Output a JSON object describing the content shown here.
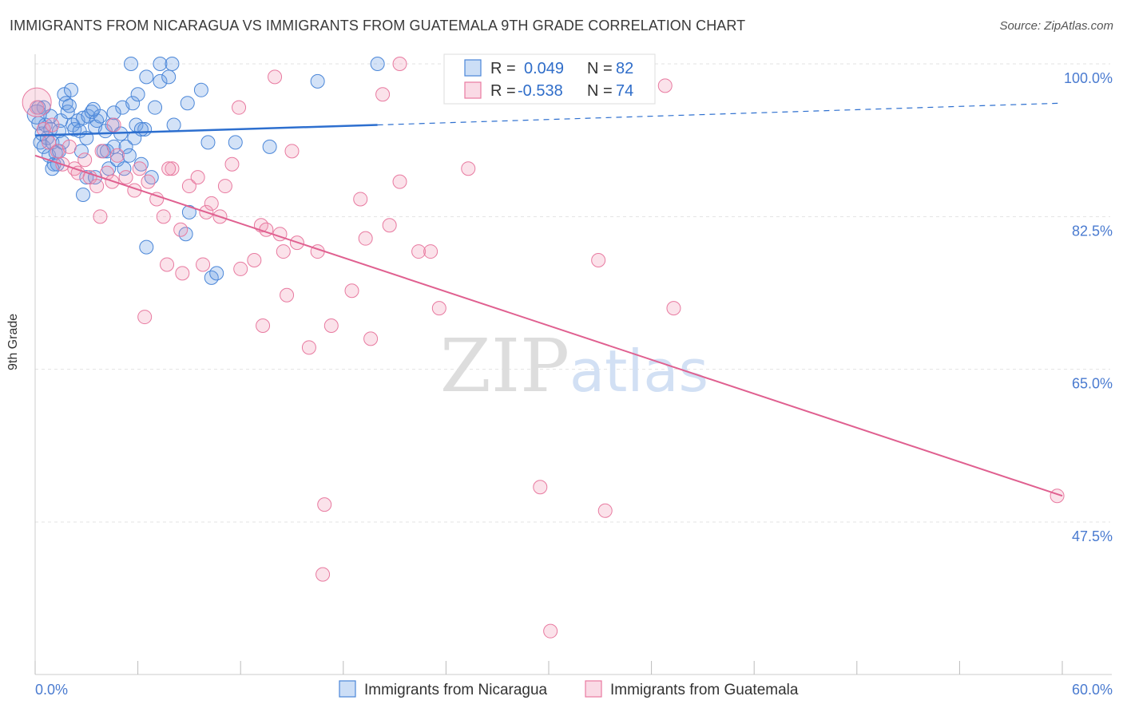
{
  "header": {
    "title": "IMMIGRANTS FROM NICARAGUA VS IMMIGRANTS FROM GUATEMALA 9TH GRADE CORRELATION CHART",
    "source": "Source: ZipAtlas.com"
  },
  "colors": {
    "blue": "#4a86d8",
    "blue_fill": "rgba(110,160,230,0.30)",
    "blue_line": "#2d6fcf",
    "pink": "#e87aa0",
    "pink_fill": "rgba(240,150,180,0.28)",
    "pink_line": "#e06090",
    "grid": "#e3e3e3",
    "axis_text": "#4a7bd0"
  },
  "stats": {
    "blue": {
      "r_label": "R =",
      "r_value": "0.049",
      "n_label": "N =",
      "n_value": "82"
    },
    "pink": {
      "r_label": "R =",
      "r_value": "-0.538",
      "n_label": "N =",
      "n_value": "74"
    }
  },
  "watermark": {
    "zip": "ZIP",
    "atlas": "atlas"
  },
  "chart_data": {
    "type": "scatter",
    "title": "IMMIGRANTS FROM NICARAGUA VS IMMIGRANTS FROM GUATEMALA 9TH GRADE CORRELATION CHART",
    "xlabel": "",
    "ylabel": "9th Grade",
    "xlim": [
      0,
      60
    ],
    "ylim": [
      31,
      102
    ],
    "x_tick_labels": [
      "0.0%",
      "60.0%"
    ],
    "y_ticks": [
      47.5,
      65.0,
      82.5,
      100.0
    ],
    "y_tick_labels": [
      "47.5%",
      "65.0%",
      "82.5%",
      "100.0%"
    ],
    "legend": [
      "Immigrants from Nicaragua",
      "Immigrants from Guatemala"
    ],
    "series": [
      {
        "name": "Immigrants from Nicaragua",
        "color": "blue",
        "points": [
          [
            0.2,
            93.2
          ],
          [
            0.3,
            91.0
          ],
          [
            0.4,
            92.0
          ],
          [
            0.5,
            90.5
          ],
          [
            0.6,
            93.0
          ],
          [
            0.7,
            91.5
          ],
          [
            0.8,
            89.5
          ],
          [
            0.9,
            92.5
          ],
          [
            1.0,
            91.0
          ],
          [
            1.1,
            88.5
          ],
          [
            1.2,
            89.8
          ],
          [
            1.3,
            88.5
          ],
          [
            1.4,
            90.0
          ],
          [
            1.5,
            93.5
          ],
          [
            1.6,
            91.0
          ],
          [
            1.7,
            96.5
          ],
          [
            1.8,
            95.5
          ],
          [
            1.9,
            94.5
          ],
          [
            2.0,
            95.2
          ],
          [
            2.2,
            93.0
          ],
          [
            2.3,
            92.5
          ],
          [
            2.5,
            93.5
          ],
          [
            2.7,
            90.0
          ],
          [
            2.8,
            93.8
          ],
          [
            3.0,
            87.0
          ],
          [
            3.1,
            94.0
          ],
          [
            3.3,
            94.5
          ],
          [
            3.5,
            92.8
          ],
          [
            3.6,
            93.5
          ],
          [
            3.8,
            94.0
          ],
          [
            4.0,
            90.0
          ],
          [
            4.1,
            92.3
          ],
          [
            4.3,
            88.0
          ],
          [
            4.5,
            93.0
          ],
          [
            4.6,
            90.5
          ],
          [
            4.8,
            89.0
          ],
          [
            5.0,
            92.0
          ],
          [
            5.1,
            95.0
          ],
          [
            5.3,
            90.5
          ],
          [
            5.5,
            89.5
          ],
          [
            5.7,
            95.5
          ],
          [
            5.9,
            93.0
          ],
          [
            6.0,
            96.5
          ],
          [
            6.2,
            88.5
          ],
          [
            6.4,
            92.5
          ],
          [
            7.0,
            95.0
          ],
          [
            7.3,
            98.0
          ],
          [
            8.1,
            93.0
          ],
          [
            8.9,
            95.5
          ],
          [
            9.7,
            97.0
          ],
          [
            10.1,
            91.0
          ],
          [
            11.7,
            91.0
          ],
          [
            13.7,
            90.5
          ],
          [
            16.5,
            98.0
          ],
          [
            20.0,
            100.0
          ],
          [
            5.6,
            100.0
          ],
          [
            7.3,
            100.0
          ],
          [
            8.0,
            100.0
          ],
          [
            6.5,
            98.5
          ],
          [
            7.8,
            98.5
          ],
          [
            5.2,
            88.0
          ],
          [
            6.8,
            87.0
          ],
          [
            3.5,
            87.0
          ],
          [
            2.8,
            85.0
          ],
          [
            9.0,
            83.0
          ],
          [
            8.8,
            80.5
          ],
          [
            6.5,
            79.0
          ],
          [
            10.3,
            75.5
          ],
          [
            10.6,
            76.0
          ],
          [
            0.5,
            95.0
          ],
          [
            0.9,
            94.0
          ],
          [
            1.4,
            92.3
          ],
          [
            2.1,
            97.0
          ],
          [
            3.4,
            94.8
          ],
          [
            4.6,
            94.4
          ],
          [
            2.6,
            92.3
          ],
          [
            0.2,
            95.0
          ],
          [
            1.0,
            88.0
          ],
          [
            3.0,
            91.5
          ],
          [
            4.2,
            90.0
          ],
          [
            5.8,
            91.5
          ],
          [
            6.2,
            92.5
          ]
        ]
      },
      {
        "name": "Immigrants from Guatemala",
        "color": "pink",
        "points": [
          [
            0.1,
            95.0
          ],
          [
            0.5,
            92.5
          ],
          [
            0.8,
            91.0
          ],
          [
            1.0,
            93.0
          ],
          [
            1.3,
            90.0
          ],
          [
            1.6,
            88.5
          ],
          [
            2.0,
            90.5
          ],
          [
            2.3,
            88.0
          ],
          [
            2.5,
            87.5
          ],
          [
            2.9,
            89.0
          ],
          [
            3.2,
            87.0
          ],
          [
            3.6,
            86.0
          ],
          [
            3.9,
            90.0
          ],
          [
            4.2,
            87.5
          ],
          [
            4.5,
            86.5
          ],
          [
            4.8,
            89.5
          ],
          [
            5.3,
            87.0
          ],
          [
            5.8,
            85.5
          ],
          [
            6.1,
            88.0
          ],
          [
            6.6,
            86.5
          ],
          [
            7.1,
            84.5
          ],
          [
            7.5,
            82.5
          ],
          [
            8.0,
            88.0
          ],
          [
            8.5,
            81.0
          ],
          [
            9.0,
            86.0
          ],
          [
            9.5,
            87.0
          ],
          [
            10.0,
            83.0
          ],
          [
            10.3,
            84.0
          ],
          [
            10.8,
            82.5
          ],
          [
            11.1,
            86.0
          ],
          [
            11.5,
            88.5
          ],
          [
            11.9,
            95.0
          ],
          [
            13.2,
            81.5
          ],
          [
            13.5,
            81.0
          ],
          [
            14.3,
            80.5
          ],
          [
            14.5,
            78.5
          ],
          [
            14.7,
            73.5
          ],
          [
            15.3,
            79.5
          ],
          [
            16.5,
            78.5
          ],
          [
            12.8,
            77.5
          ],
          [
            13.3,
            70.0
          ],
          [
            17.3,
            70.0
          ],
          [
            18.5,
            74.0
          ],
          [
            19.3,
            80.0
          ],
          [
            19.6,
            68.5
          ],
          [
            20.3,
            96.5
          ],
          [
            20.7,
            81.5
          ],
          [
            21.3,
            86.5
          ],
          [
            21.3,
            100.0
          ],
          [
            22.4,
            78.5
          ],
          [
            23.1,
            78.5
          ],
          [
            23.6,
            72.0
          ],
          [
            25.3,
            88.0
          ],
          [
            19.0,
            84.5
          ],
          [
            14.0,
            98.5
          ],
          [
            8.6,
            76.0
          ],
          [
            9.8,
            77.0
          ],
          [
            7.7,
            77.0
          ],
          [
            12.0,
            76.5
          ],
          [
            6.4,
            71.0
          ],
          [
            3.8,
            82.5
          ],
          [
            16.0,
            67.5
          ],
          [
            29.5,
            51.5
          ],
          [
            33.3,
            48.8
          ],
          [
            16.9,
            49.5
          ],
          [
            16.8,
            41.5
          ],
          [
            30.1,
            35.0
          ],
          [
            32.9,
            77.5
          ],
          [
            37.3,
            72.0
          ],
          [
            36.8,
            97.5
          ],
          [
            59.7,
            50.5
          ],
          [
            15.0,
            90.0
          ],
          [
            4.6,
            93.0
          ],
          [
            7.8,
            88.0
          ]
        ]
      }
    ],
    "trendlines": [
      {
        "series": "Immigrants from Nicaragua",
        "solid_x": [
          0,
          20
        ],
        "y_at": [
          91.8,
          93.0
        ],
        "dashed_x": [
          20,
          60
        ],
        "dashed_y": [
          93.0,
          95.5
        ]
      },
      {
        "series": "Immigrants from Guatemala",
        "solid_x": [
          0,
          60
        ],
        "y_at": [
          89.5,
          50.5
        ]
      }
    ]
  }
}
